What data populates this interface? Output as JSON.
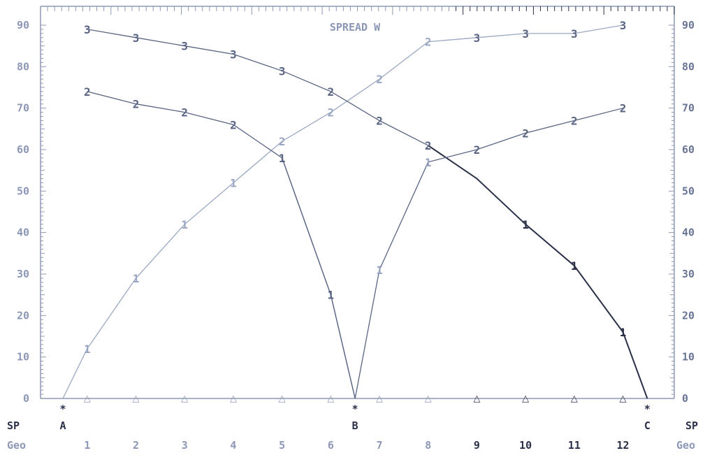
{
  "chart_data": {
    "type": "line",
    "title": "SPREAD W",
    "ylim": [
      0,
      90
    ],
    "yticks": [
      0,
      10,
      20,
      30,
      40,
      50,
      60,
      70,
      80,
      90
    ],
    "sp_row_label": "SP",
    "geo_row_label": "Geo",
    "geo_categories": [
      "1",
      "2",
      "3",
      "4",
      "5",
      "6",
      "7",
      "8",
      "9",
      "10",
      "11",
      "12"
    ],
    "sp_points": [
      {
        "label": "A",
        "x": 0.5,
        "marker": "*"
      },
      {
        "label": "B",
        "x": 6.5,
        "marker": "*"
      },
      {
        "label": "C",
        "x": 12.5,
        "marker": "*"
      }
    ],
    "series": [
      {
        "marker": "1",
        "color": "#9aa6c2",
        "points": [
          [
            0.5,
            0
          ],
          [
            1,
            12
          ],
          [
            2,
            29
          ],
          [
            3,
            42
          ],
          [
            4,
            52
          ],
          [
            5,
            62
          ],
          [
            6,
            69
          ],
          [
            7,
            77
          ],
          [
            8,
            86
          ],
          [
            9,
            87
          ],
          [
            10,
            88
          ],
          [
            11,
            88
          ],
          [
            12,
            90
          ]
        ],
        "labels": [
          [
            1,
            12
          ],
          [
            2,
            29
          ],
          [
            3,
            42
          ],
          [
            4,
            52
          ],
          [
            7,
            31
          ],
          [
            8,
            57
          ]
        ]
      },
      {
        "marker": "1",
        "color": "#5a6584",
        "points": [
          [
            0.5,
            0
          ]
        ],
        "labels": [
          [
            5,
            58
          ],
          [
            6,
            25
          ]
        ]
      },
      {
        "marker": "1",
        "color": "#2a3048",
        "points": [
          [
            8,
            61
          ],
          [
            9,
            53
          ],
          [
            10,
            42
          ],
          [
            11,
            32
          ],
          [
            12,
            16
          ],
          [
            12.5,
            0
          ]
        ],
        "labels": [
          [
            10,
            42
          ],
          [
            11,
            32
          ],
          [
            12,
            16
          ]
        ]
      },
      {
        "marker": "2",
        "color": "#5a6584",
        "points": [
          [
            1,
            74
          ],
          [
            2,
            71
          ],
          [
            3,
            69
          ],
          [
            4,
            66
          ],
          [
            5,
            58
          ],
          [
            6,
            25
          ],
          [
            6.5,
            0
          ],
          [
            7,
            31
          ],
          [
            8,
            57
          ],
          [
            9,
            60
          ],
          [
            10,
            64
          ],
          [
            11,
            67
          ],
          [
            12,
            70
          ]
        ],
        "labels": [
          [
            1,
            74
          ],
          [
            2,
            71
          ],
          [
            3,
            69
          ],
          [
            4,
            66
          ],
          [
            6,
            74
          ],
          [
            7,
            67
          ],
          [
            8,
            61
          ],
          [
            9,
            60
          ],
          [
            10,
            64
          ],
          [
            11,
            67
          ],
          [
            12,
            70
          ]
        ]
      },
      {
        "marker": "3",
        "color": "#5a6584",
        "points": [
          [
            1,
            89
          ],
          [
            2,
            87
          ],
          [
            3,
            85
          ],
          [
            4,
            83
          ],
          [
            5,
            79
          ],
          [
            6,
            74
          ],
          [
            7,
            67
          ],
          [
            8,
            61
          ]
        ],
        "labels": [
          [
            1,
            89
          ],
          [
            2,
            87
          ],
          [
            3,
            85
          ],
          [
            4,
            83
          ],
          [
            5,
            79
          ],
          [
            9,
            87
          ],
          [
            10,
            88
          ],
          [
            11,
            88
          ],
          [
            12,
            90
          ]
        ]
      },
      {
        "marker": "2",
        "color": "#9aa6c2",
        "points": [],
        "labels": [
          [
            5,
            62
          ],
          [
            6,
            69
          ],
          [
            7,
            77
          ],
          [
            8,
            86
          ]
        ]
      }
    ],
    "baseline_marker": "△",
    "baseline_x": [
      1,
      2,
      3,
      4,
      5,
      6,
      7,
      8,
      9,
      10,
      11,
      12
    ]
  }
}
